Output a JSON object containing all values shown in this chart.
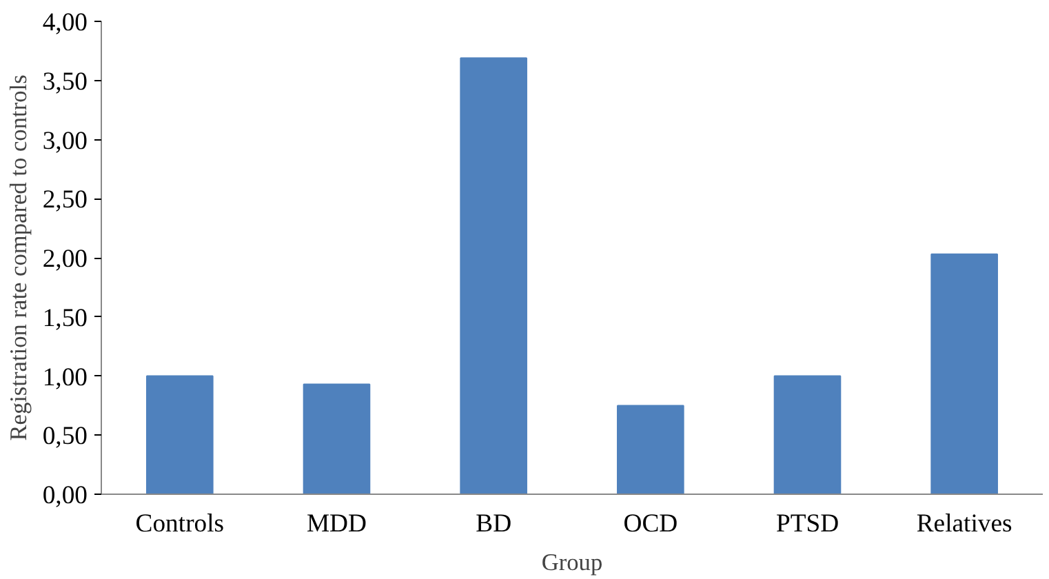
{
  "chart_data": {
    "type": "bar",
    "xlabel": "Group",
    "ylabel": "Registration rate compared to controls",
    "categories": [
      "Controls",
      "MDD",
      "BD",
      "OCD",
      "PTSD",
      "Relatives"
    ],
    "values": [
      1.0,
      0.93,
      3.69,
      0.75,
      1.0,
      2.03
    ],
    "color": "#4f81bd",
    "ylim": [
      0,
      4
    ],
    "yticks": [
      {
        "value": 0,
        "label": "0,00"
      },
      {
        "value": 0.5,
        "label": "0,50"
      },
      {
        "value": 1,
        "label": "1,00"
      },
      {
        "value": 1.5,
        "label": "1,50"
      },
      {
        "value": 2,
        "label": "2,00"
      },
      {
        "value": 2.5,
        "label": "2,50"
      },
      {
        "value": 3,
        "label": "3,00"
      },
      {
        "value": 3.5,
        "label": "3,50"
      },
      {
        "value": 4,
        "label": "4,00"
      }
    ],
    "grid": false
  }
}
